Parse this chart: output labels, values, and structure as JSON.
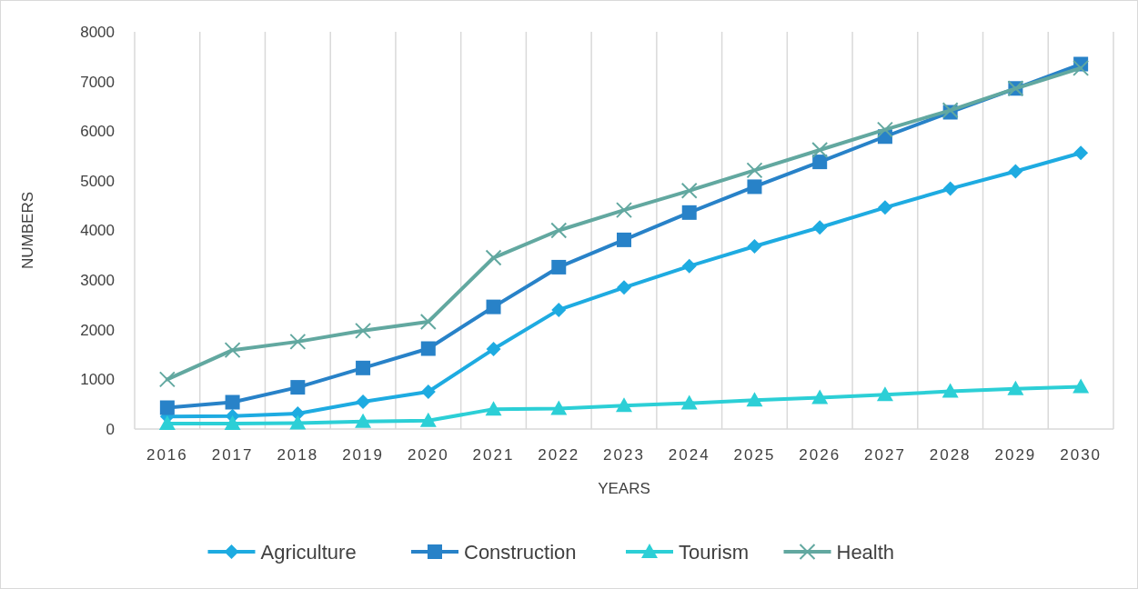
{
  "chart_data": {
    "type": "line",
    "xlabel": "YEARS",
    "ylabel": "NUMBERS",
    "categories": [
      "2016",
      "2017",
      "2018",
      "2019",
      "2020",
      "2021",
      "2022",
      "2023",
      "2024",
      "2025",
      "2026",
      "2027",
      "2028",
      "2029",
      "2030"
    ],
    "series": [
      {
        "name": "Agriculture",
        "color": "#1eabe1",
        "marker": "diamond",
        "values": [
          250,
          260,
          310,
          550,
          750,
          1610,
          2400,
          2850,
          3280,
          3680,
          4060,
          4460,
          4840,
          5190,
          5560
        ]
      },
      {
        "name": "Construction",
        "color": "#2882c8",
        "marker": "square",
        "values": [
          430,
          540,
          840,
          1230,
          1620,
          2460,
          3260,
          3810,
          4360,
          4880,
          5380,
          5890,
          6380,
          6860,
          7350
        ]
      },
      {
        "name": "Tourism",
        "color": "#2ccfd6",
        "marker": "triangle",
        "values": [
          110,
          110,
          120,
          150,
          170,
          400,
          410,
          470,
          520,
          580,
          630,
          690,
          760,
          810,
          850
        ]
      },
      {
        "name": "Health",
        "color": "#62a8a0",
        "marker": "cross",
        "values": [
          1000,
          1590,
          1760,
          1980,
          2160,
          3450,
          4000,
          4410,
          4800,
          5210,
          5620,
          6030,
          6420,
          6860,
          7270
        ]
      }
    ],
    "ylim": [
      0,
      8000
    ],
    "yticks": [
      0,
      1000,
      2000,
      3000,
      4000,
      5000,
      6000,
      7000,
      8000
    ],
    "grid": "x",
    "legend": "bottom"
  }
}
